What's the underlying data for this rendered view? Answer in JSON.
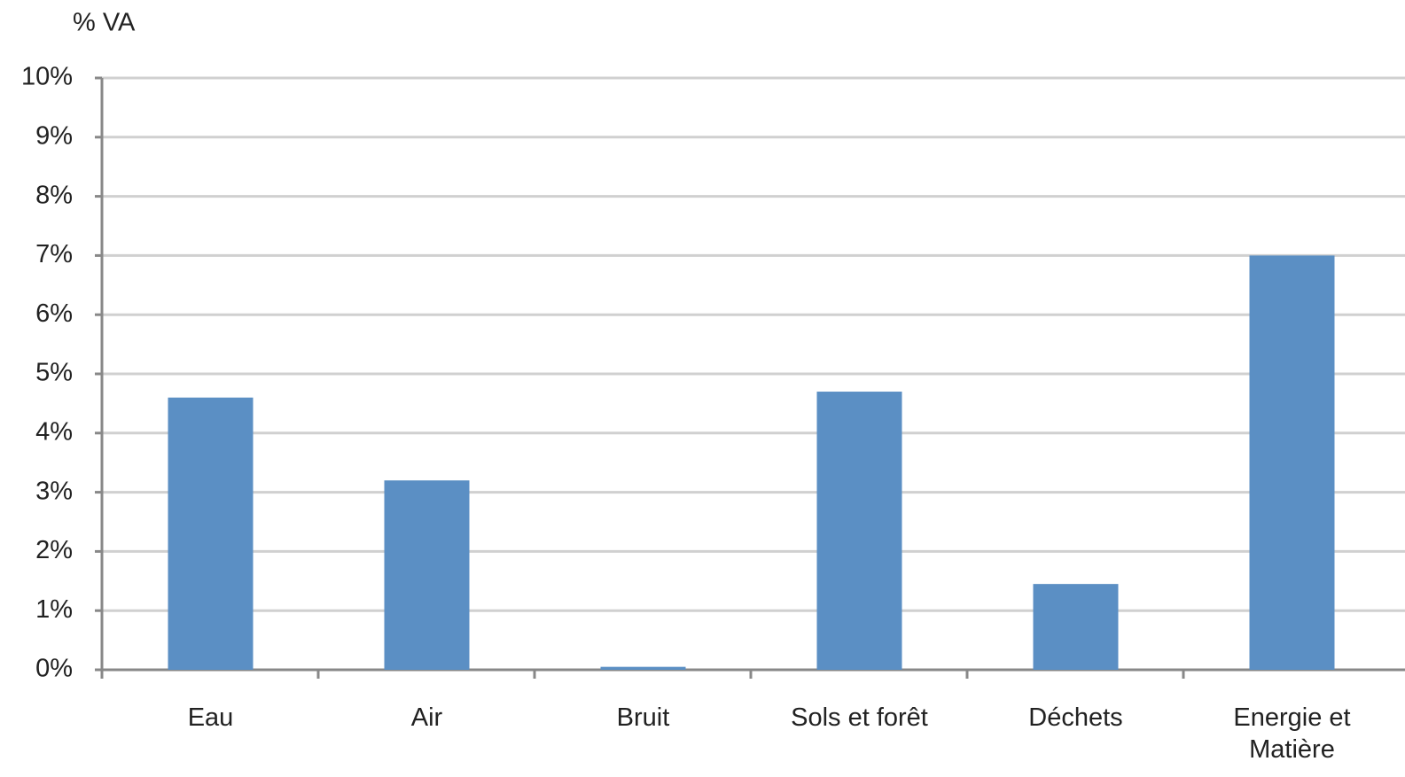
{
  "chart_data": {
    "type": "bar",
    "y_axis_label": "% VA",
    "categories": [
      "Eau",
      "Air",
      "Bruit",
      "Sols et forêt",
      "Déchets",
      "Energie et Matière"
    ],
    "values": [
      4.6,
      3.2,
      0.05,
      4.7,
      1.45,
      7.0
    ],
    "color": "#5b8fc4",
    "ylim": [
      0,
      10
    ],
    "yticks": [
      {
        "value": 0,
        "label": "0%"
      },
      {
        "value": 1,
        "label": "1%"
      },
      {
        "value": 2,
        "label": "2%"
      },
      {
        "value": 3,
        "label": "3%"
      },
      {
        "value": 4,
        "label": "4%"
      },
      {
        "value": 5,
        "label": "5%"
      },
      {
        "value": 6,
        "label": "6%"
      },
      {
        "value": 7,
        "label": "7%"
      },
      {
        "value": 8,
        "label": "8%"
      },
      {
        "value": 9,
        "label": "9%"
      },
      {
        "value": 10,
        "label": "10%"
      }
    ],
    "grid": true
  }
}
